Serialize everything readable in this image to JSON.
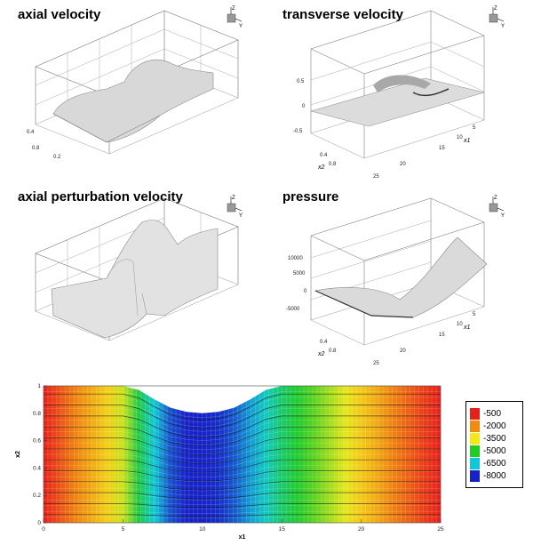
{
  "chart_data": [
    {
      "type": "surface",
      "title": "axial velocity",
      "orientation_axes": [
        "Z",
        "Y"
      ]
    },
    {
      "type": "surface",
      "title": "transverse velocity",
      "orientation_axes": [
        "Z",
        "Y"
      ],
      "zticks": [
        "0.5",
        "0",
        "-0.5"
      ],
      "x1ticks": [
        "5",
        "10",
        "15",
        "20",
        "25"
      ],
      "x2ticks": [
        "0.4",
        "0.8"
      ],
      "xlabel": "x1",
      "ylabel": "x2"
    },
    {
      "type": "surface",
      "title": "axial perturbation velocity",
      "orientation_axes": [
        "Z",
        "Y"
      ]
    },
    {
      "type": "surface",
      "title": "pressure",
      "orientation_axes": [
        "Z",
        "Y"
      ],
      "zticks": [
        "10000",
        "5000",
        "0",
        "-5000"
      ],
      "x1ticks": [
        "5",
        "10",
        "15",
        "20",
        "25"
      ],
      "x2ticks": [
        "0.4",
        "0.8"
      ],
      "xlabel": "x1",
      "ylabel": "x2"
    },
    {
      "type": "heatmap",
      "title": "",
      "xlabel": "x1",
      "ylabel": "x2",
      "xticks": [
        "0",
        "5",
        "10",
        "15",
        "20",
        "25"
      ],
      "yticks": [
        "0",
        "0.2",
        "0.4",
        "0.6",
        "0.8",
        "1"
      ],
      "xlim": [
        0,
        25
      ],
      "ylim": [
        0,
        1
      ],
      "legend_position": "right",
      "legend": {
        "levels": [
          "-500",
          "-2000",
          "-3500",
          "-5000",
          "-6500",
          "-8000"
        ],
        "colors": [
          "#e8201a",
          "#f08a10",
          "#f4e81a",
          "#22cc22",
          "#11c8d8",
          "#1622c8"
        ]
      },
      "wall_profile": {
        "x": [
          0,
          5,
          6,
          7,
          8,
          9,
          10,
          11,
          12,
          13,
          14,
          15,
          25
        ],
        "top": [
          1,
          1,
          0.97,
          0.9,
          0.84,
          0.81,
          0.8,
          0.81,
          0.84,
          0.9,
          0.97,
          1,
          1
        ],
        "bottom": [
          0,
          0,
          0,
          0,
          0,
          0,
          0,
          0,
          0,
          0,
          0,
          0,
          0
        ]
      },
      "pressure_by_x": {
        "x": [
          0,
          1,
          2,
          3,
          4,
          5,
          6,
          7,
          8,
          9,
          10,
          11,
          12,
          13,
          14,
          15,
          16,
          17,
          18,
          19,
          20,
          21,
          22,
          23,
          24,
          25
        ],
        "values": [
          -500,
          -1200,
          -1900,
          -2500,
          -3100,
          -3800,
          -5300,
          -6500,
          -7600,
          -8000,
          -8000,
          -7900,
          -7500,
          -6900,
          -6300,
          -5600,
          -5100,
          -4600,
          -4100,
          -3600,
          -3000,
          -2500,
          -1900,
          -1400,
          -900,
          -500
        ]
      },
      "streamline_x2_upstream": [
        0.06,
        0.14,
        0.22,
        0.3,
        0.38,
        0.46,
        0.54,
        0.62,
        0.7,
        0.78,
        0.86,
        0.94
      ]
    }
  ]
}
